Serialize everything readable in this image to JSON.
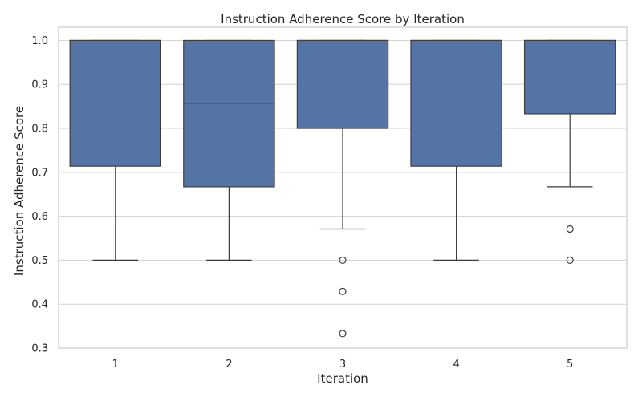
{
  "chart_data": {
    "type": "box",
    "title": "Instruction Adherence Score by Iteration",
    "xlabel": "Iteration",
    "ylabel": "Instruction Adherence Score",
    "categories": [
      "1",
      "2",
      "3",
      "4",
      "5"
    ],
    "ylim": [
      0.3,
      1.03
    ],
    "yticks": [
      0.3,
      0.4,
      0.5,
      0.6,
      0.7,
      0.8,
      0.9,
      1.0
    ],
    "ytick_labels": [
      "0.3",
      "0.4",
      "0.5",
      "0.6",
      "0.7",
      "0.8",
      "0.9",
      "1.0"
    ],
    "grid": true,
    "colors": {
      "box": "#5574a6",
      "line": "#3d3d3d",
      "grid": "#d3d3d3",
      "frame": "#cccccc"
    },
    "boxes": [
      {
        "category": "1",
        "whislo": 0.5,
        "q1": 0.714,
        "median": 1.0,
        "q3": 1.0,
        "whishi": 1.0,
        "fliers": []
      },
      {
        "category": "2",
        "whislo": 0.5,
        "q1": 0.667,
        "median": 0.857,
        "q3": 1.0,
        "whishi": 1.0,
        "fliers": []
      },
      {
        "category": "3",
        "whislo": 0.571,
        "q1": 0.8,
        "median": 1.0,
        "q3": 1.0,
        "whishi": 1.0,
        "fliers": [
          0.5,
          0.429,
          0.333
        ]
      },
      {
        "category": "4",
        "whislo": 0.5,
        "q1": 0.714,
        "median": 1.0,
        "q3": 1.0,
        "whishi": 1.0,
        "fliers": []
      },
      {
        "category": "5",
        "whislo": 0.667,
        "q1": 0.833,
        "median": 1.0,
        "q3": 1.0,
        "whishi": 1.0,
        "fliers": [
          0.571,
          0.5
        ]
      }
    ]
  }
}
